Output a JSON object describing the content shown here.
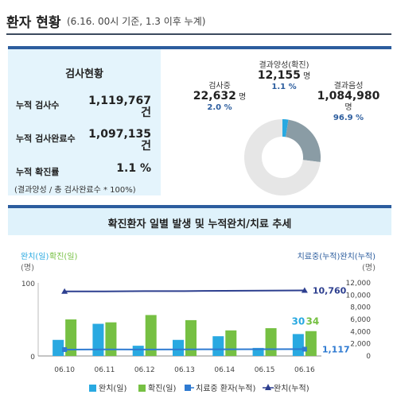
{
  "header": {
    "title": "환자 현황",
    "subtitle": "(6.16. 00시 기준, 1.3 이후 누계)"
  },
  "stats": {
    "title": "검사현황",
    "items": [
      {
        "label": "누적 검사수",
        "value": "1,119,767",
        "unit": "건"
      },
      {
        "label": "누적 검사완료수",
        "value": "1,097,135",
        "unit": "건"
      },
      {
        "label": "누적 확진률",
        "value": "1.1 %"
      }
    ],
    "note": "(결과양성 / 총 검사완료수 * 100%)"
  },
  "pie": {
    "positive": {
      "label": "결과양성(확진)",
      "value": "12,155",
      "unit": "명",
      "pct": "1.1 %",
      "share": 1.1
    },
    "testing": {
      "label": "검사중",
      "value": "22,632",
      "unit": "명",
      "pct": "2.0 %",
      "share": 2.0
    },
    "negative": {
      "label": "결과음성",
      "value": "1,084,980",
      "unit": "명",
      "pct": "96.9 %",
      "share": 96.9
    },
    "colors": {
      "positive": "#29a9e1",
      "testing": "#8a9ca5",
      "negative": "#e6e6e6"
    }
  },
  "chart_data": {
    "type": "bar",
    "title": "확진환자 일별 발생 및 누적완치/치료 추세",
    "categories": [
      "06.10",
      "06.11",
      "06.12",
      "06.13",
      "06.14",
      "06.15",
      "06.16"
    ],
    "left_axis": {
      "label": "완치(일)확진(일)",
      "unit": "(명)",
      "ylim": [
        0,
        100
      ],
      "ticks": [
        "0",
        "100"
      ]
    },
    "right_axis": {
      "label": "치료중(누적)완치(누적)",
      "unit": "(명)",
      "ylim": [
        0,
        12000
      ],
      "ticks": [
        "0",
        "2,000",
        "4,000",
        "6,000",
        "8,000",
        "10,000",
        "12,000"
      ]
    },
    "series": [
      {
        "name": "완치(일)",
        "type": "bar",
        "axis": "left",
        "color": "#29a9e1",
        "values": [
          22,
          44,
          14,
          22,
          27,
          11,
          30
        ]
      },
      {
        "name": "확진(일)",
        "type": "bar",
        "axis": "left",
        "color": "#76c043",
        "values": [
          50,
          46,
          56,
          49,
          35,
          38,
          34
        ]
      },
      {
        "name": "치료중 환자(누적)",
        "type": "line",
        "axis": "right",
        "color": "#2e7ad1",
        "values": [
          1050,
          1080,
          1060,
          1080,
          1100,
          1110,
          1117
        ]
      },
      {
        "name": "완치(누적)",
        "type": "line",
        "axis": "right",
        "color": "#2d3f8f",
        "values": [
          10600,
          10600,
          10650,
          10650,
          10700,
          10730,
          10760
        ]
      }
    ],
    "annotations": {
      "recovered_daily_last": "30",
      "confirmed_daily_last": "34",
      "treating_last": "1,117",
      "recovered_cum_last": "10,760"
    },
    "legend": {
      "placement": "bottom"
    }
  }
}
